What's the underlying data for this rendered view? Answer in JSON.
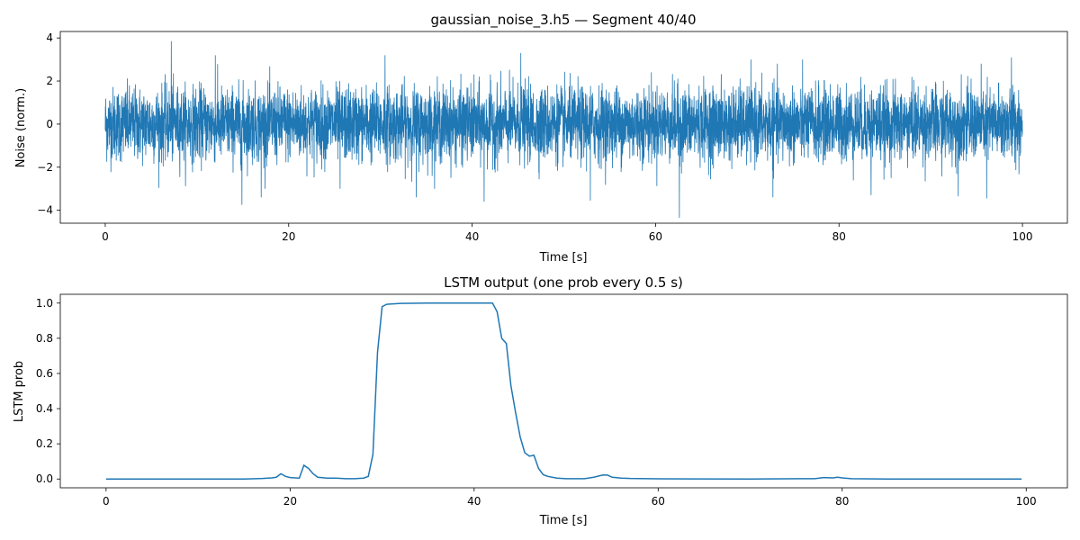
{
  "colors": {
    "series": "#1f77b4",
    "axes": "#000000",
    "background": "#ffffff"
  },
  "chart_data": [
    {
      "type": "line",
      "title": "gaussian_noise_3.h5 — Segment 40/40",
      "xlabel": "Time [s]",
      "ylabel": "Noise (norm.)",
      "xlim": [
        -4.9,
        104.9
      ],
      "ylim": [
        -4.6,
        4.3
      ],
      "xticks": [
        0,
        20,
        40,
        60,
        80,
        100
      ],
      "xtick_labels": [
        "0",
        "20",
        "40",
        "60",
        "80",
        "100"
      ],
      "yticks": [
        -4,
        -2,
        0,
        2,
        4
      ],
      "ytick_labels": [
        "−4",
        "−2",
        "0",
        "2",
        "4"
      ],
      "grid": false,
      "legend": "none",
      "series": [
        {
          "values_note_free": true,
          "x_range": [
            0,
            100
          ],
          "envelope_typical": [
            -1.8,
            1.8
          ],
          "spikes": [
            {
              "x": 7.2,
              "y": 3.85
            },
            {
              "x": 12.0,
              "y": 3.2
            },
            {
              "x": 30.5,
              "y": 3.2
            },
            {
              "x": 45.3,
              "y": 3.3
            },
            {
              "x": 98.8,
              "y": 3.1
            },
            {
              "x": 14.9,
              "y": -3.75
            },
            {
              "x": 62.6,
              "y": -4.35
            },
            {
              "x": 33.9,
              "y": -3.4
            },
            {
              "x": 41.3,
              "y": -3.6
            },
            {
              "x": 52.9,
              "y": -3.55
            },
            {
              "x": 17.0,
              "y": -3.4
            },
            {
              "x": 96.1,
              "y": -3.45
            },
            {
              "x": 83.5,
              "y": -3.3
            },
            {
              "x": 72.8,
              "y": -3.4
            },
            {
              "x": 93.0,
              "y": -3.35
            },
            {
              "x": 25.6,
              "y": -3.0
            }
          ]
        }
      ]
    },
    {
      "type": "line",
      "title": "LSTM output (one prob every 0.5 s)",
      "xlabel": "Time [s]",
      "ylabel": "LSTM prob",
      "xlim": [
        -4.975,
        104.475
      ],
      "ylim": [
        -0.05,
        1.05
      ],
      "xticks": [
        0,
        20,
        40,
        60,
        80,
        100
      ],
      "xtick_labels": [
        "0",
        "20",
        "40",
        "60",
        "80",
        "100"
      ],
      "yticks": [
        0.0,
        0.2,
        0.4,
        0.6,
        0.8,
        1.0
      ],
      "ytick_labels": [
        "0.0",
        "0.2",
        "0.4",
        "0.6",
        "0.8",
        "1.0"
      ],
      "grid": false,
      "legend": "none",
      "series": [
        {
          "x": [
            0,
            15,
            17,
            18,
            18.5,
            19,
            19.5,
            20,
            21,
            21.5,
            22,
            22.5,
            23,
            24,
            25,
            26,
            27,
            28,
            28.5,
            29,
            29.5,
            30,
            30.5,
            31,
            32,
            35,
            40,
            42,
            42.5,
            43,
            43.5,
            44,
            44.5,
            45,
            45.5,
            46,
            46.5,
            47,
            47.5,
            48,
            49,
            50,
            52,
            53,
            54,
            54.5,
            55,
            56,
            57,
            60,
            70,
            77,
            78,
            79,
            79.5,
            80,
            81,
            85,
            90,
            99.5
          ],
          "y": [
            0.0,
            0.0,
            0.003,
            0.006,
            0.01,
            0.03,
            0.015,
            0.008,
            0.005,
            0.078,
            0.06,
            0.03,
            0.01,
            0.005,
            0.005,
            0.002,
            0.002,
            0.005,
            0.015,
            0.14,
            0.72,
            0.98,
            0.993,
            0.995,
            0.998,
            1.0,
            1.0,
            1.0,
            0.95,
            0.8,
            0.77,
            0.53,
            0.38,
            0.24,
            0.15,
            0.13,
            0.135,
            0.06,
            0.025,
            0.015,
            0.005,
            0.002,
            0.002,
            0.01,
            0.023,
            0.022,
            0.01,
            0.005,
            0.003,
            0.001,
            0.0,
            0.002,
            0.008,
            0.006,
            0.01,
            0.006,
            0.002,
            0.0,
            0.0,
            0.0
          ]
        }
      ]
    }
  ]
}
